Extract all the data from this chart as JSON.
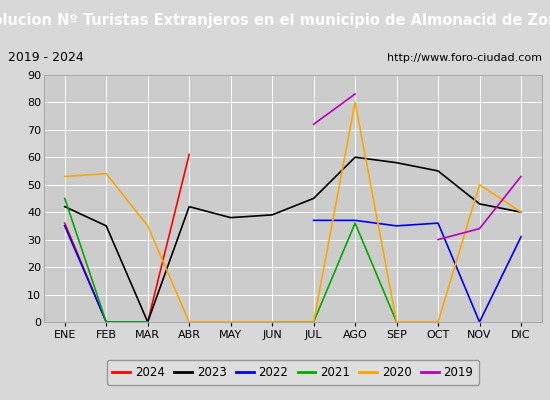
{
  "title": "Evolucion Nº Turistas Extranjeros en el municipio de Almonacid de Zorita",
  "subtitle_left": "2019 - 2024",
  "subtitle_right": "http://www.foro-ciudad.com",
  "months": [
    "ENE",
    "FEB",
    "MAR",
    "ABR",
    "MAY",
    "JUN",
    "JUL",
    "AGO",
    "SEP",
    "OCT",
    "NOV",
    "DIC"
  ],
  "series": {
    "2024": [
      36,
      0,
      0,
      61,
      null,
      null,
      null,
      null,
      null,
      null,
      null,
      null
    ],
    "2023": [
      42,
      35,
      0,
      42,
      38,
      39,
      45,
      60,
      58,
      55,
      43,
      40
    ],
    "2022": [
      35,
      0,
      0,
      null,
      null,
      null,
      37,
      37,
      35,
      36,
      0,
      31
    ],
    "2021": [
      45,
      0,
      0,
      null,
      null,
      0,
      0,
      36,
      0,
      null,
      null,
      null
    ],
    "2020": [
      53,
      54,
      35,
      0,
      0,
      0,
      0,
      80,
      0,
      0,
      50,
      40
    ],
    "2019": [
      null,
      null,
      null,
      null,
      null,
      null,
      72,
      83,
      null,
      30,
      34,
      53
    ]
  },
  "colors": {
    "2024": "#ff0000",
    "2023": "#000000",
    "2022": "#0000ff",
    "2021": "#00aa00",
    "2020": "#ffa500",
    "2019": "#bb00bb"
  },
  "ylim": [
    0,
    90
  ],
  "yticks": [
    0,
    10,
    20,
    30,
    40,
    50,
    60,
    70,
    80,
    90
  ],
  "background_color": "#d8d8d8",
  "title_background": "#4488bb",
  "title_color": "#ffffff",
  "header_background": "#cccccc",
  "plot_background": "#cccccc",
  "grid_color": "#ffffff",
  "title_fontsize": 10.5,
  "axis_fontsize": 8,
  "legend_fontsize": 8.5
}
